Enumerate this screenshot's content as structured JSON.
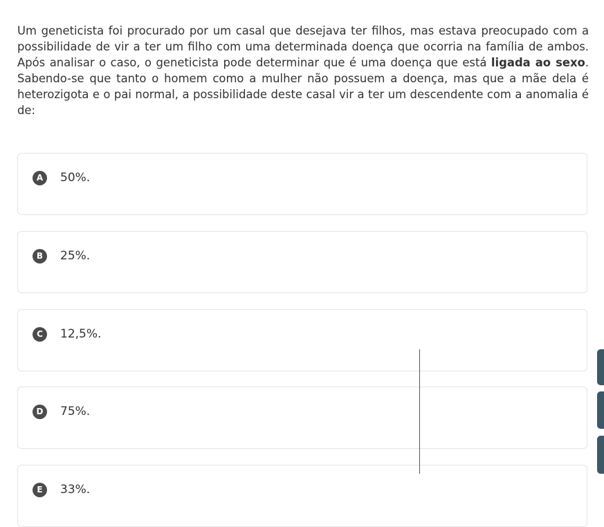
{
  "question": {
    "before": "Um geneticista foi procurado por um casal que desejava ter filhos, mas estava preocupado com a possibilidade de vir a ter um filho com uma determinada doença que ocorria na família de ambos. Após analisar o caso, o geneticista pode determinar que é uma doença que está ",
    "bold": "ligada ao sexo",
    "after": ". Sabendo-se que tanto o homem como a mulher não possuem a doença, mas que a mãe dela é heterozigota e o pai normal, a possibilidade deste casal vir a ter um descendente com a anomalia é de:"
  },
  "options": [
    {
      "letter": "A",
      "text": "50%."
    },
    {
      "letter": "B",
      "text": "25%."
    },
    {
      "letter": "C",
      "text": "12,5%."
    },
    {
      "letter": "D",
      "text": "75%."
    },
    {
      "letter": "E",
      "text": "33%."
    }
  ]
}
